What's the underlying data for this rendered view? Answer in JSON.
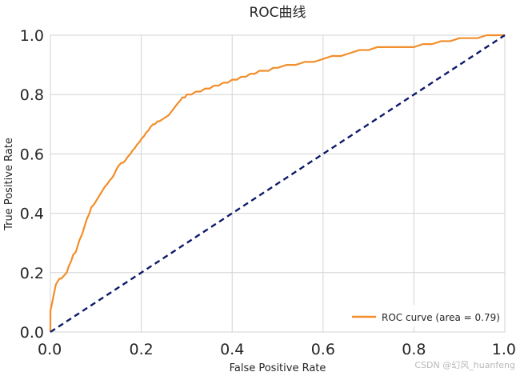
{
  "chart_data": {
    "type": "line",
    "title": "ROC曲线",
    "xlabel": "False Positive Rate",
    "ylabel": "True Positive Rate",
    "xlim": [
      0.0,
      1.0
    ],
    "ylim": [
      0.0,
      1.0
    ],
    "xticks": [
      "0.0",
      "0.2",
      "0.4",
      "0.6",
      "0.8",
      "1.0"
    ],
    "yticks": [
      "0.0",
      "0.2",
      "0.4",
      "0.6",
      "0.8",
      "1.0"
    ],
    "grid": true,
    "legend_position": "bottom-right",
    "series": [
      {
        "name": "ROC curve (area = 0.79)",
        "color": "#F28E2B",
        "style": "solid",
        "x": [
          0.0,
          0.0,
          0.004,
          0.008,
          0.012,
          0.016,
          0.02,
          0.024,
          0.03,
          0.036,
          0.04,
          0.046,
          0.05,
          0.056,
          0.06,
          0.064,
          0.07,
          0.076,
          0.08,
          0.086,
          0.09,
          0.096,
          0.1,
          0.104,
          0.108,
          0.112,
          0.116,
          0.12,
          0.126,
          0.13,
          0.136,
          0.14,
          0.146,
          0.15,
          0.156,
          0.16,
          0.166,
          0.17,
          0.176,
          0.18,
          0.186,
          0.19,
          0.196,
          0.2,
          0.206,
          0.21,
          0.216,
          0.22,
          0.226,
          0.23,
          0.236,
          0.24,
          0.25,
          0.26,
          0.27,
          0.28,
          0.286,
          0.29,
          0.296,
          0.3,
          0.306,
          0.31,
          0.32,
          0.33,
          0.34,
          0.35,
          0.36,
          0.37,
          0.38,
          0.39,
          0.4,
          0.41,
          0.42,
          0.43,
          0.44,
          0.45,
          0.46,
          0.47,
          0.48,
          0.49,
          0.5,
          0.52,
          0.54,
          0.56,
          0.58,
          0.6,
          0.62,
          0.64,
          0.66,
          0.68,
          0.7,
          0.72,
          0.74,
          0.76,
          0.78,
          0.8,
          0.82,
          0.84,
          0.86,
          0.88,
          0.9,
          0.92,
          0.94,
          0.96,
          0.98,
          1.0
        ],
        "y": [
          0.0,
          0.07,
          0.1,
          0.13,
          0.16,
          0.17,
          0.18,
          0.18,
          0.19,
          0.2,
          0.22,
          0.24,
          0.26,
          0.27,
          0.29,
          0.31,
          0.33,
          0.36,
          0.38,
          0.4,
          0.42,
          0.43,
          0.44,
          0.45,
          0.46,
          0.47,
          0.48,
          0.49,
          0.5,
          0.51,
          0.52,
          0.53,
          0.55,
          0.56,
          0.57,
          0.57,
          0.58,
          0.59,
          0.6,
          0.61,
          0.62,
          0.63,
          0.64,
          0.65,
          0.66,
          0.67,
          0.68,
          0.69,
          0.7,
          0.7,
          0.71,
          0.71,
          0.72,
          0.73,
          0.75,
          0.77,
          0.78,
          0.79,
          0.79,
          0.8,
          0.8,
          0.8,
          0.81,
          0.81,
          0.82,
          0.82,
          0.83,
          0.83,
          0.84,
          0.84,
          0.85,
          0.85,
          0.86,
          0.86,
          0.87,
          0.87,
          0.88,
          0.88,
          0.88,
          0.89,
          0.89,
          0.9,
          0.9,
          0.91,
          0.91,
          0.92,
          0.93,
          0.93,
          0.94,
          0.95,
          0.95,
          0.96,
          0.96,
          0.96,
          0.96,
          0.96,
          0.97,
          0.97,
          0.98,
          0.98,
          0.99,
          0.99,
          0.99,
          1.0,
          1.0,
          1.0
        ]
      },
      {
        "name": "",
        "color": "#0D1A6B",
        "style": "dashed",
        "x": [
          0.0,
          1.0
        ],
        "y": [
          0.0,
          1.0
        ]
      }
    ],
    "legend": [
      "ROC curve (area = 0.79)"
    ]
  },
  "watermark": "CSDN @幻风_huanfeng"
}
